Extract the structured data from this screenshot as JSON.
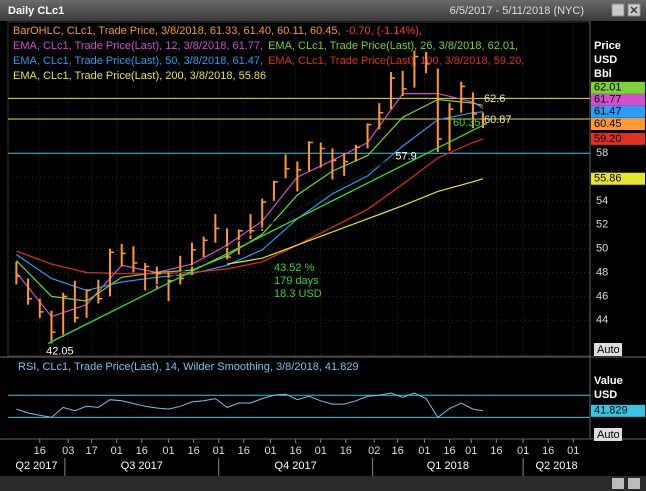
{
  "header": {
    "title": "Daily CLc1",
    "range": "6/5/2017 - 5/11/2018 (NYC)"
  },
  "x_axis": {
    "xlim": [
      "2017-05-28",
      "2018-05-11"
    ],
    "xticks": [
      {
        "value": "2017-06-16",
        "label": "16"
      },
      {
        "value": "2017-07-03",
        "label": "03"
      },
      {
        "value": "2017-07-17",
        "label": "17"
      },
      {
        "value": "2017-08-01",
        "label": "01"
      },
      {
        "value": "2017-08-16",
        "label": "16"
      },
      {
        "value": "2017-09-01",
        "label": "01"
      },
      {
        "value": "2017-09-16",
        "label": "16"
      },
      {
        "value": "2017-10-01",
        "label": "01"
      },
      {
        "value": "2017-10-16",
        "label": "16"
      },
      {
        "value": "2017-11-01",
        "label": "01"
      },
      {
        "value": "2017-11-16",
        "label": "16"
      },
      {
        "value": "2017-12-01",
        "label": "01"
      },
      {
        "value": "2017-12-16",
        "label": "16"
      },
      {
        "value": "2018-01-02",
        "label": "02"
      },
      {
        "value": "2018-01-16",
        "label": "16"
      },
      {
        "value": "2018-02-01",
        "label": "01"
      },
      {
        "value": "2018-02-16",
        "label": "16"
      },
      {
        "value": "2018-03-01",
        "label": "01"
      },
      {
        "value": "2018-03-16",
        "label": "16"
      },
      {
        "value": "2018-04-01",
        "label": "01"
      },
      {
        "value": "2018-04-16",
        "label": "16"
      },
      {
        "value": "2018-05-01",
        "label": "01"
      }
    ],
    "quarters": [
      {
        "value": "2017-04-01",
        "label": "Q2 2017"
      },
      {
        "value": "2017-07-01",
        "label": "Q3 2017"
      },
      {
        "value": "2017-10-01",
        "label": "Q4 2017"
      },
      {
        "value": "2018-01-01",
        "label": "Q1 2018"
      },
      {
        "value": "2018-04-01",
        "label": "Q2 2018"
      }
    ]
  },
  "chart_data": [
    {
      "type": "ohlc",
      "axis_label": [
        "Price",
        "USD",
        "Bbl"
      ],
      "auto": "Auto",
      "ylim": [
        41,
        69
      ],
      "yticks": [
        44,
        46,
        48,
        50,
        52,
        54,
        56,
        58
      ],
      "grid": true,
      "series": [
        {
          "name": "BarOHLC, CLc1, Trade Price, 3/8/2018, 61.33, 61.40, 60.11, 60.45,",
          "change": "-0.70, (-1.14%),",
          "color": "#ff9933",
          "change_color": "#ff3b2f",
          "x": [
            "2017-06-02",
            "2017-06-09",
            "2017-06-16",
            "2017-06-23",
            "2017-06-30",
            "2017-07-07",
            "2017-07-14",
            "2017-07-21",
            "2017-07-28",
            "2017-08-04",
            "2017-08-11",
            "2017-08-18",
            "2017-08-25",
            "2017-09-01",
            "2017-09-08",
            "2017-09-15",
            "2017-09-22",
            "2017-09-29",
            "2017-10-06",
            "2017-10-13",
            "2017-10-20",
            "2017-10-27",
            "2017-11-03",
            "2017-11-10",
            "2017-11-17",
            "2017-11-24",
            "2017-12-01",
            "2017-12-08",
            "2017-12-15",
            "2017-12-22",
            "2017-12-29",
            "2018-01-05",
            "2018-01-12",
            "2018-01-19",
            "2018-01-26",
            "2018-02-02",
            "2018-02-09",
            "2018-02-16",
            "2018-02-23",
            "2018-03-02",
            "2018-03-08"
          ],
          "high": [
            48.9,
            47.5,
            45.8,
            44.8,
            46.3,
            47.3,
            46.6,
            47.4,
            50.0,
            50.4,
            50.2,
            48.8,
            48.5,
            48.0,
            49.4,
            50.5,
            51.0,
            52.9,
            51.7,
            51.6,
            52.9,
            54.2,
            55.7,
            57.9,
            57.3,
            59.0,
            58.9,
            58.4,
            58.0,
            58.7,
            60.5,
            62.2,
            64.8,
            64.9,
            66.6,
            66.5,
            65.1,
            62.2,
            64.0,
            63.1,
            61.4
          ],
          "low": [
            47.0,
            45.3,
            44.2,
            42.05,
            42.6,
            43.8,
            44.2,
            45.4,
            46.0,
            48.5,
            48.0,
            46.5,
            46.6,
            45.6,
            47.0,
            47.8,
            49.3,
            50.5,
            49.1,
            49.5,
            50.8,
            51.5,
            54.0,
            55.9,
            54.8,
            56.5,
            56.8,
            55.8,
            56.1,
            57.3,
            58.4,
            60.0,
            61.7,
            62.8,
            63.5,
            64.7,
            58.1,
            58.2,
            61.4,
            60.1,
            60.11
          ],
          "close": [
            47.7,
            45.8,
            44.7,
            43.0,
            46.0,
            44.2,
            46.5,
            45.8,
            49.7,
            49.6,
            48.8,
            48.5,
            47.9,
            47.3,
            47.5,
            49.9,
            50.7,
            51.7,
            49.3,
            51.5,
            51.5,
            53.9,
            55.6,
            56.7,
            56.6,
            58.9,
            58.4,
            57.4,
            57.3,
            58.5,
            60.4,
            61.4,
            64.3,
            63.4,
            66.1,
            65.5,
            59.2,
            61.7,
            63.6,
            61.3,
            60.45
          ]
        }
      ],
      "overlays": [
        {
          "name": "EMA, CLc1, Trade Price(Last), 12, 3/8/2018, 61.77,",
          "color": "#d24fd2",
          "x": [
            "2017-06-02",
            "2017-06-23",
            "2017-07-14",
            "2017-08-04",
            "2017-08-25",
            "2017-09-15",
            "2017-10-06",
            "2017-10-27",
            "2017-11-17",
            "2017-12-08",
            "2017-12-29",
            "2018-01-19",
            "2018-02-09",
            "2018-03-02",
            "2018-03-08"
          ],
          "values": [
            48.0,
            44.3,
            45.3,
            48.6,
            48.0,
            48.7,
            50.3,
            52.3,
            56.0,
            57.4,
            58.9,
            63.0,
            63.0,
            62.3,
            61.77
          ]
        },
        {
          "name": "EMA, CLc1, Trade Price(Last), 26, 3/8/2018, 62.01,",
          "color": "#7ed23a",
          "x": [
            "2017-06-02",
            "2017-06-23",
            "2017-07-14",
            "2017-08-04",
            "2017-08-25",
            "2017-09-15",
            "2017-10-06",
            "2017-10-27",
            "2017-11-17",
            "2017-12-08",
            "2017-12-29",
            "2018-01-19",
            "2018-02-09",
            "2018-03-02",
            "2018-03-08"
          ],
          "values": [
            49.0,
            46.0,
            45.6,
            47.6,
            48.0,
            48.2,
            49.4,
            51.2,
            54.5,
            56.5,
            57.8,
            61.0,
            62.5,
            62.2,
            62.01
          ]
        },
        {
          "name": "EMA, CLc1, Trade Price(Last), 50, 3/8/2018, 61.47,",
          "color": "#2a9df4",
          "x": [
            "2017-06-02",
            "2017-06-23",
            "2017-07-14",
            "2017-08-04",
            "2017-08-25",
            "2017-09-15",
            "2017-10-06",
            "2017-10-27",
            "2017-11-17",
            "2017-12-08",
            "2017-12-29",
            "2018-01-19",
            "2018-02-09",
            "2018-03-02",
            "2018-03-08"
          ],
          "values": [
            49.5,
            47.5,
            46.5,
            47.2,
            47.6,
            47.9,
            48.6,
            49.9,
            52.5,
            54.6,
            56.1,
            58.6,
            60.8,
            61.4,
            61.47
          ]
        },
        {
          "name": "EMA, CLc1, Trade Price(Last), 100, 3/8/2018, 59.20,",
          "color": "#e0301e",
          "x": [
            "2017-06-02",
            "2017-06-23",
            "2017-07-14",
            "2017-08-04",
            "2017-08-25",
            "2017-09-15",
            "2017-10-06",
            "2017-10-27",
            "2017-11-17",
            "2017-12-08",
            "2017-12-29",
            "2018-01-19",
            "2018-02-09",
            "2018-03-02",
            "2018-03-08"
          ],
          "values": [
            49.8,
            48.7,
            48.0,
            47.9,
            47.9,
            48.0,
            48.3,
            48.9,
            50.3,
            51.8,
            53.3,
            55.4,
            57.6,
            58.9,
            59.2
          ],
          "value_labels": [
            null,
            null,
            null,
            null,
            null,
            null,
            null,
            null,
            null,
            null,
            null,
            null,
            null,
            null,
            "59.20"
          ]
        },
        {
          "name": "EMA, CLc1, Trade Price(Last), 200, 3/8/2018, 55.86",
          "color": "#e6e62e",
          "x": [
            "2017-06-02",
            "2017-06-23",
            "2017-07-14",
            "2017-08-04",
            "2017-08-25",
            "2017-09-15",
            "2017-10-06",
            "2017-10-27",
            "2017-11-17",
            "2017-12-08",
            "2017-12-29",
            "2018-01-19",
            "2018-02-09",
            "2018-03-02",
            "2018-03-08"
          ],
          "values": [
            null,
            null,
            null,
            null,
            null,
            null,
            48.7,
            49.2,
            50.3,
            51.4,
            52.5,
            53.6,
            54.8,
            55.6,
            55.86
          ]
        }
      ],
      "hlines": [
        {
          "value": 62.6,
          "color": "#e6e62e",
          "label": "62.6"
        },
        {
          "value": 60.87,
          "color": "#e6e62e",
          "label": "60.87"
        },
        {
          "value": 58,
          "color": "#35c6e6"
        }
      ],
      "trendlines": [
        {
          "color": "#151515",
          "x": [
            "2017-06-21",
            "2018-01-17"
          ],
          "values": [
            42.05,
            57.9
          ]
        },
        {
          "color": "#3fd23f",
          "x": [
            "2017-06-21",
            "2018-03-08"
          ],
          "values": [
            42.05,
            60.35
          ],
          "stats": [
            "43.52 %",
            "179 days",
            "18.3 USD"
          ]
        }
      ]
    },
    {
      "type": "line",
      "axis_label": [
        "Value",
        "USD"
      ],
      "auto": "Auto",
      "ylim": [
        0,
        130
      ],
      "hlines": [
        70,
        30
      ],
      "series": [
        {
          "name": "RSI, CLc1, Trade Price(Last), 14, Wilder Smoothing, 3/8/2018, 41.829",
          "color": "#7cc2ee",
          "tag_color": "#35c6e6",
          "x": [
            "2017-06-02",
            "2017-06-09",
            "2017-06-16",
            "2017-06-23",
            "2017-06-30",
            "2017-07-07",
            "2017-07-14",
            "2017-07-21",
            "2017-07-28",
            "2017-08-04",
            "2017-08-11",
            "2017-08-18",
            "2017-08-25",
            "2017-09-01",
            "2017-09-08",
            "2017-09-15",
            "2017-09-22",
            "2017-09-29",
            "2017-10-06",
            "2017-10-13",
            "2017-10-20",
            "2017-10-27",
            "2017-11-03",
            "2017-11-10",
            "2017-11-17",
            "2017-11-24",
            "2017-12-01",
            "2017-12-08",
            "2017-12-15",
            "2017-12-22",
            "2017-12-29",
            "2018-01-05",
            "2018-01-12",
            "2018-01-19",
            "2018-01-26",
            "2018-02-02",
            "2018-02-09",
            "2018-02-16",
            "2018-02-23",
            "2018-03-02",
            "2018-03-08"
          ],
          "values": [
            45,
            38,
            34,
            30,
            48,
            42,
            50,
            48,
            62,
            60,
            55,
            50,
            47,
            45,
            50,
            58,
            60,
            64,
            48,
            56,
            56,
            64,
            70,
            72,
            62,
            68,
            60,
            54,
            54,
            60,
            68,
            70,
            74,
            66,
            74,
            64,
            30,
            46,
            56,
            45,
            41.829
          ]
        }
      ]
    }
  ]
}
